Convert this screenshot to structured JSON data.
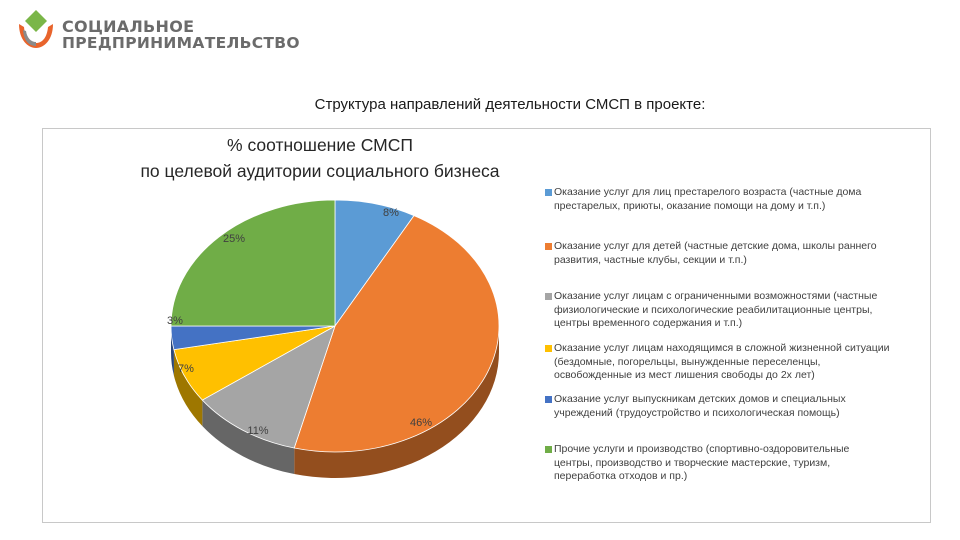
{
  "logo": {
    "line1": "СОЦИАЛЬНОЕ",
    "line2": "ПРЕДПРИНИМАТЕЛЬСТВО",
    "colors": {
      "green": "#7ab648",
      "orange": "#e8642c",
      "gray": "#8a8a8a"
    }
  },
  "slide_title": "Структура направлений деятельности СМСП в проекте:",
  "chart_data": {
    "type": "pie",
    "title_line1": "% соотношение СМСП",
    "title_line2": "по целевой аудитории социального бизнеса",
    "slices": [
      {
        "label": "Оказание услуг для лиц престарелого возраста (частные дома престарелых, приюты, оказание помощи на дому и т.п.)",
        "value": 8,
        "value_label": "8%",
        "color": "#5b9bd5"
      },
      {
        "label": "Оказание услуг для детей (частные детские дома, школы раннего развития, частные клубы, секции и т.п.)",
        "value": 46,
        "value_label": "46%",
        "color": "#ed7d31"
      },
      {
        "label": "Оказание услуг лицам с ограниченными возможностями (частные физиологические и психологические реабилитационные центры, центры временного содержания и т.п.)",
        "value": 11,
        "value_label": "11%",
        "color": "#a5a5a5"
      },
      {
        "label": "Оказание услуг лицам находящимся в сложной жизненной ситуации (бездомные, погорельцы, вынужденные переселенцы, освобожденные из мест лишения свободы до 2х лет)",
        "value": 7,
        "value_label": "7%",
        "color": "#ffc000"
      },
      {
        "label": "Оказание услуг выпускникам детских домов и специальных учреждений (трудоустройство и психологическая помощь)",
        "value": 3,
        "value_label": "3%",
        "color": "#4472c4"
      },
      {
        "label": "Прочие услуги и производство (спортивно-оздоровительные центры, производство и творческие мастерские, туризм, переработка отходов и пр.)",
        "value": 25,
        "value_label": "25%",
        "color": "#70ad47"
      }
    ],
    "legend_position": "right"
  }
}
